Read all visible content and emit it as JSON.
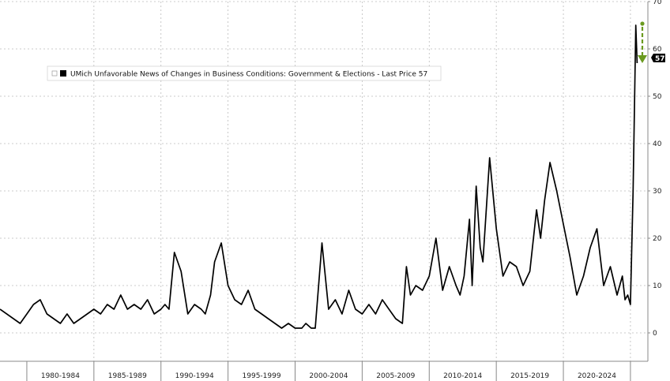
{
  "chart_data": {
    "type": "line",
    "x_period_labels": [
      "1980-1984",
      "1985-1989",
      "1990-1994",
      "1995-1999",
      "2000-2004",
      "2005-2009",
      "2010-2014",
      "2015-2019",
      "2020-2024"
    ],
    "ylim": [
      -6,
      70
    ],
    "y_ticks": [
      0,
      10,
      20,
      30,
      40,
      50,
      60,
      70
    ],
    "grid": true,
    "legend": {
      "text": "UMich Unfavorable News of Changes in Business Conditions: Government & Elections - Last Price 57",
      "placement": "top-left"
    },
    "last_price_label": "57",
    "colors": {
      "line": "#000000",
      "arrow": "#6a9a1f",
      "grid": "#bbbbbb"
    },
    "series": [
      {
        "x": [
          1978.0,
          1979.5,
          1980.0,
          1980.5,
          1981.0,
          1981.5,
          1982.0,
          1982.5,
          1983.0,
          1983.5,
          1984.0,
          1984.5,
          1985.0,
          1985.5,
          1986.0,
          1986.5,
          1987.0,
          1987.5,
          1988.0,
          1988.5,
          1989.0,
          1989.5,
          1990.0,
          1990.3,
          1990.6,
          1991.0,
          1991.5,
          1992.0,
          1992.5,
          1993.0,
          1993.3,
          1993.7,
          1994.0,
          1994.5,
          1995.0,
          1995.5,
          1996.0,
          1996.5,
          1997.0,
          1997.5,
          1998.0,
          1998.5,
          1999.0,
          1999.5,
          2000.0,
          2000.5,
          2000.8,
          2001.2,
          2001.5,
          2002.0,
          2002.5,
          2003.0,
          2003.5,
          2004.0,
          2004.5,
          2005.0,
          2005.5,
          2006.0,
          2006.5,
          2007.0,
          2007.5,
          2008.0,
          2008.3,
          2008.6,
          2009.0,
          2009.5,
          2010.0,
          2010.5,
          2011.0,
          2011.5,
          2012.0,
          2012.3,
          2012.6,
          2013.0,
          2013.2,
          2013.5,
          2013.8,
          2014.0,
          2014.5,
          2015.0,
          2015.5,
          2016.0,
          2016.5,
          2017.0,
          2017.5,
          2018.0,
          2018.3,
          2018.6,
          2019.0,
          2019.5,
          2020.0,
          2020.5,
          2021.0,
          2021.5,
          2022.0,
          2022.5,
          2023.0,
          2023.5,
          2024.0,
          2024.4,
          2024.6,
          2024.8,
          2025.0,
          2025.2,
          2025.4,
          2025.5
        ],
        "y": [
          5,
          2,
          4,
          6,
          7,
          4,
          3,
          2,
          4,
          2,
          3,
          4,
          5,
          4,
          6,
          5,
          8,
          5,
          6,
          5,
          7,
          4,
          5,
          6,
          5,
          17,
          13,
          4,
          6,
          5,
          4,
          8,
          15,
          19,
          10,
          7,
          6,
          9,
          5,
          4,
          3,
          2,
          1,
          2,
          1,
          1,
          2,
          1,
          1,
          19,
          5,
          7,
          4,
          9,
          5,
          4,
          6,
          4,
          7,
          5,
          3,
          2,
          14,
          8,
          10,
          9,
          12,
          20,
          9,
          14,
          10,
          8,
          12,
          24,
          10,
          31,
          18,
          15,
          37,
          22,
          12,
          15,
          14,
          10,
          13,
          26,
          20,
          28,
          36,
          30,
          23,
          16,
          8,
          12,
          18,
          22,
          10,
          14,
          8,
          12,
          7,
          8,
          6,
          30,
          65,
          57
        ]
      }
    ]
  }
}
